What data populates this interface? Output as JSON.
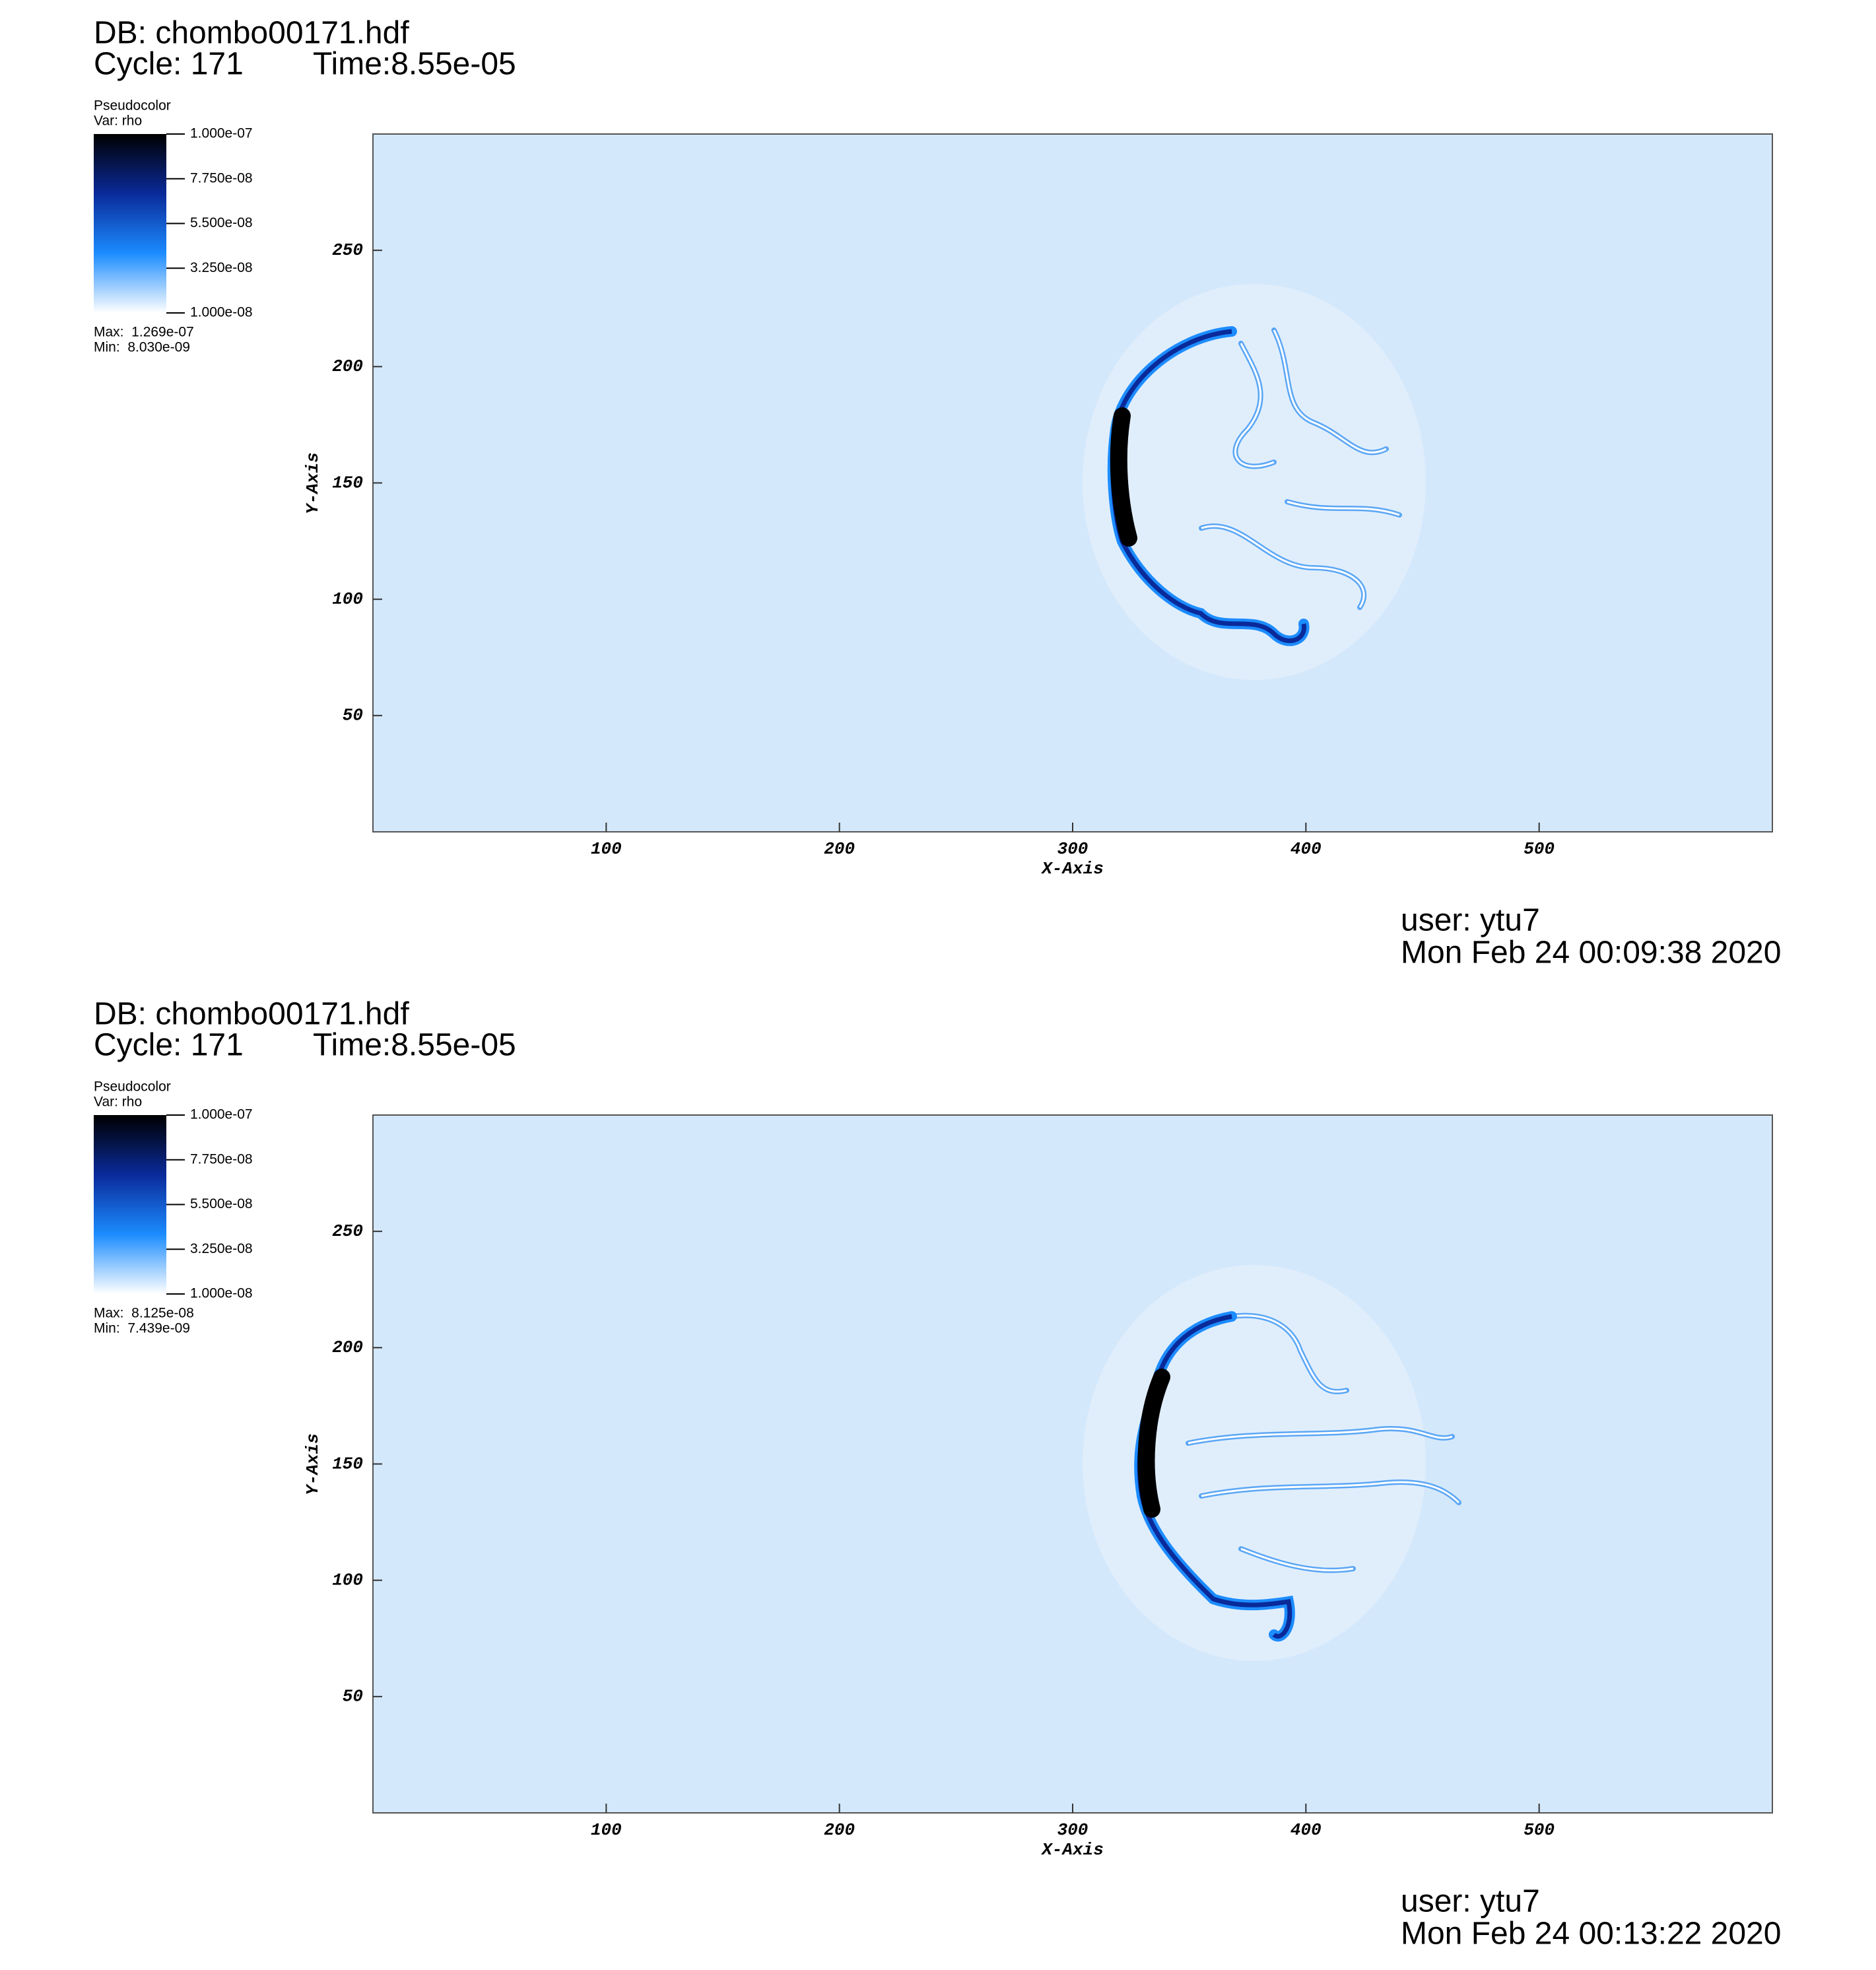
{
  "chart_data": [
    {
      "type": "pseudocolor",
      "database": "DB: chombo00171.hdf",
      "cycle": "Cycle: 171",
      "time": "Time:8.55e-05",
      "legend_title": "Pseudocolor",
      "variable": "Var: rho",
      "colorbar_lim": [
        1e-08,
        1e-07
      ],
      "colorbar_ticks": [
        {
          "value": 1e-07,
          "label": "1.000e-07"
        },
        {
          "value": 7.75e-08,
          "label": "7.750e-08"
        },
        {
          "value": 5.5e-08,
          "label": "5.500e-08"
        },
        {
          "value": 3.25e-08,
          "label": "3.250e-08"
        },
        {
          "value": 1e-08,
          "label": "1.000e-08"
        }
      ],
      "max": "Max:  1.269e-07",
      "min": "Min:  8.030e-09",
      "colormap": [
        "#ffffff",
        "#1c8cff",
        "#0a2a9a",
        "#000000"
      ],
      "background": "#d4e8fb",
      "xlabel": "X-Axis",
      "ylabel": "Y-Axis",
      "xlim": [
        0,
        600
      ],
      "ylim": [
        0,
        300
      ],
      "xticks": [
        100,
        200,
        300,
        400,
        500
      ],
      "yticks": [
        50,
        100,
        150,
        200,
        250
      ],
      "user": "user: ytu7",
      "date": "Mon Feb 24 00:09:38 2020"
    },
    {
      "type": "pseudocolor",
      "database": "DB: chombo00171.hdf",
      "cycle": "Cycle: 171",
      "time": "Time:8.55e-05",
      "legend_title": "Pseudocolor",
      "variable": "Var: rho",
      "colorbar_lim": [
        1e-08,
        1e-07
      ],
      "colorbar_ticks": [
        {
          "value": 1e-07,
          "label": "1.000e-07"
        },
        {
          "value": 7.75e-08,
          "label": "7.750e-08"
        },
        {
          "value": 5.5e-08,
          "label": "5.500e-08"
        },
        {
          "value": 3.25e-08,
          "label": "3.250e-08"
        },
        {
          "value": 1e-08,
          "label": "1.000e-08"
        }
      ],
      "max": "Max:  8.125e-08",
      "min": "Min:  7.439e-09",
      "colormap": [
        "#ffffff",
        "#1c8cff",
        "#0a2a9a",
        "#000000"
      ],
      "background": "#d4e8fb",
      "xlabel": "X-Axis",
      "ylabel": "Y-Axis",
      "xlim": [
        0,
        600
      ],
      "ylim": [
        0,
        300
      ],
      "xticks": [
        100,
        200,
        300,
        400,
        500
      ],
      "yticks": [
        50,
        100,
        150,
        200,
        250
      ],
      "user": "user: ytu7",
      "date": "Mon Feb 24 00:13:22 2020"
    }
  ]
}
